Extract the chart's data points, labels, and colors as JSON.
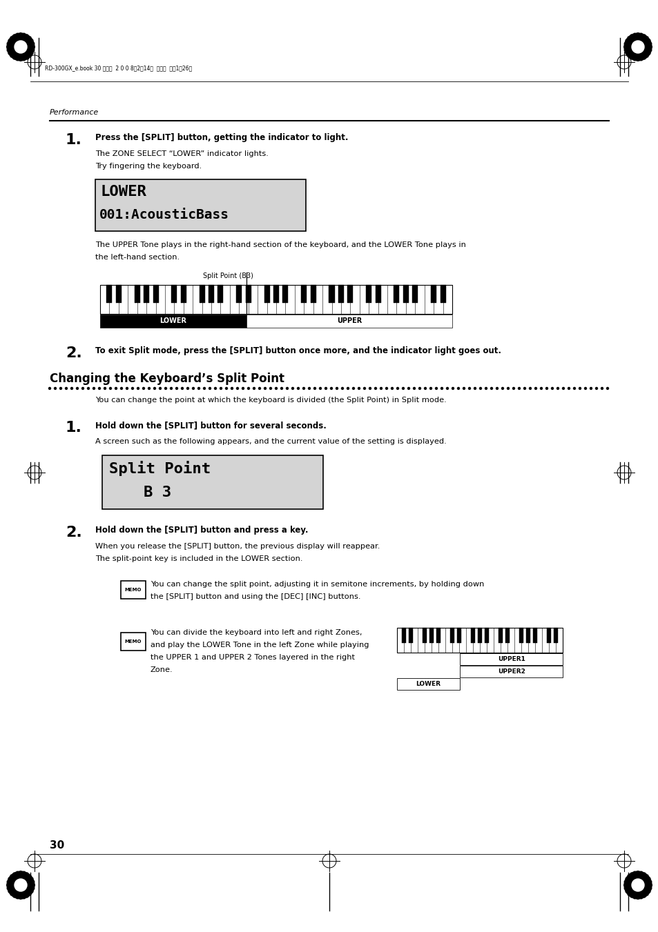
{
  "bg_color": "#ffffff",
  "page_width": 9.54,
  "page_height": 13.51,
  "dpi": 100,
  "header_text": "RD-300GX_e.book 30 ページ  2 0 0 8年2月14日  木曜日  午後1時26分",
  "section_label": "Performance",
  "step1_num": "1.",
  "step1_bold": "Press the [SPLIT] button, getting the indicator to light.",
  "step1_line1": "The ZONE SELECT “LOWER” indicator lights.",
  "step1_line2": "Try fingering the keyboard.",
  "lcd1_line1": "LOWER",
  "lcd1_line2": "001:AcousticBass",
  "step1_desc1": "The UPPER Tone plays in the right-hand section of the keyboard, and the LOWER Tone plays in",
  "step1_desc2": "the left-hand section.",
  "split_point_label": "Split Point (B3)",
  "step2_num": "2.",
  "step2_bold": "To exit Split mode, press the [SPLIT] button once more, and the indicator light goes out.",
  "section2_title": "Changing the Keyboard’s Split Point",
  "section2_desc": "You can change the point at which the keyboard is divided (the Split Point) in Split mode.",
  "s2_step1_num": "1.",
  "s2_step1_bold": "Hold down the [SPLIT] button for several seconds.",
  "s2_step1_desc": "A screen such as the following appears, and the current value of the setting is displayed.",
  "lcd2_line1": "Split Point",
  "lcd2_line2": "B 3",
  "s2_step2_num": "2.",
  "s2_step2_bold": "Hold down the [SPLIT] button and press a key.",
  "s2_step2_line1": "When you release the [SPLIT] button, the previous display will reappear.",
  "s2_step2_line2": "The split-point key is included in the LOWER section.",
  "memo1_text1": "You can change the split point, adjusting it in semitone increments, by holding down",
  "memo1_text2": "the [SPLIT] button and using the [DEC] [INC] buttons.",
  "memo2_text1": "You can divide the keyboard into left and right Zones,",
  "memo2_text2": "and play the LOWER Tone in the left Zone while playing",
  "memo2_text3": "the UPPER 1 and UPPER 2 Tones layered in the right",
  "memo2_text4": "Zone.",
  "page_num": "30"
}
